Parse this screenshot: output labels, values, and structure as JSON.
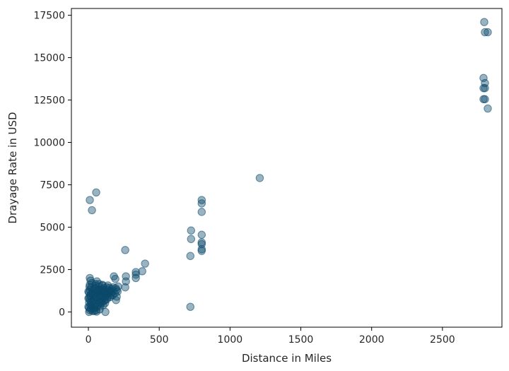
{
  "chart_data": {
    "type": "scatter",
    "title": "",
    "xlabel": "Distance in Miles",
    "ylabel": "Drayage Rate in USD",
    "xlim": [
      -120,
      2920
    ],
    "ylim": [
      -900,
      17900
    ],
    "xticks": [
      0,
      500,
      1000,
      1500,
      2000,
      2500
    ],
    "yticks": [
      0,
      2500,
      5000,
      7500,
      10000,
      12500,
      15000,
      17500
    ],
    "grid": false,
    "legend": "none",
    "point_color": "#0b4a6b",
    "point_alpha": 0.42,
    "series": [
      {
        "points": [
          [
            10,
            6600
          ],
          [
            25,
            6000
          ],
          [
            55,
            7050
          ],
          [
            260,
            3650
          ],
          [
            400,
            2850
          ],
          [
            380,
            2400
          ],
          [
            335,
            2350
          ],
          [
            335,
            2200
          ],
          [
            335,
            2000
          ],
          [
            265,
            2100
          ],
          [
            265,
            1800
          ],
          [
            260,
            1450
          ],
          [
            180,
            2100
          ],
          [
            190,
            1950
          ],
          [
            200,
            1300
          ],
          [
            200,
            900
          ],
          [
            195,
            700
          ],
          [
            120,
            0
          ],
          [
            10,
            2000
          ],
          [
            720,
            300
          ],
          [
            720,
            3300
          ],
          [
            725,
            4300
          ],
          [
            725,
            4800
          ],
          [
            800,
            3600
          ],
          [
            800,
            3700
          ],
          [
            800,
            4000
          ],
          [
            800,
            4100
          ],
          [
            800,
            4550
          ],
          [
            800,
            5900
          ],
          [
            800,
            6400
          ],
          [
            800,
            6600
          ],
          [
            1210,
            7900
          ],
          [
            2795,
            17100
          ],
          [
            2800,
            16500
          ],
          [
            2820,
            16500
          ],
          [
            2790,
            13800
          ],
          [
            2800,
            13500
          ],
          [
            2790,
            13200
          ],
          [
            2800,
            13200
          ],
          [
            2790,
            12550
          ],
          [
            2800,
            12550
          ],
          [
            2820,
            12000
          ],
          [
            5,
            0
          ],
          [
            10,
            100
          ],
          [
            5,
            250
          ],
          [
            15,
            400
          ],
          [
            5,
            550
          ],
          [
            10,
            700
          ],
          [
            5,
            850
          ],
          [
            15,
            1000
          ],
          [
            5,
            1150
          ],
          [
            10,
            1300
          ],
          [
            20,
            1450
          ],
          [
            10,
            1600
          ],
          [
            30,
            50
          ],
          [
            35,
            200
          ],
          [
            25,
            350
          ],
          [
            40,
            500
          ],
          [
            30,
            650
          ],
          [
            45,
            800
          ],
          [
            35,
            950
          ],
          [
            40,
            1100
          ],
          [
            30,
            1250
          ],
          [
            45,
            1400
          ],
          [
            50,
            1550
          ],
          [
            55,
            100
          ],
          [
            60,
            300
          ],
          [
            55,
            500
          ],
          [
            65,
            700
          ],
          [
            60,
            900
          ],
          [
            70,
            1100
          ],
          [
            65,
            1300
          ],
          [
            75,
            1500
          ],
          [
            80,
            150
          ],
          [
            85,
            350
          ],
          [
            80,
            550
          ],
          [
            90,
            750
          ],
          [
            85,
            950
          ],
          [
            95,
            1150
          ],
          [
            90,
            1350
          ],
          [
            100,
            1550
          ],
          [
            105,
            400
          ],
          [
            110,
            650
          ],
          [
            105,
            900
          ],
          [
            115,
            1150
          ],
          [
            110,
            1400
          ],
          [
            120,
            700
          ],
          [
            125,
            950
          ],
          [
            120,
            1200
          ],
          [
            130,
            1450
          ],
          [
            135,
            1050
          ],
          [
            140,
            1300
          ],
          [
            150,
            1100
          ],
          [
            155,
            1250
          ],
          [
            160,
            1000
          ],
          [
            170,
            1200
          ],
          [
            175,
            1450
          ],
          [
            25,
            1700
          ],
          [
            50,
            1650
          ],
          [
            75,
            1650
          ],
          [
            100,
            1600
          ],
          [
            15,
            1850
          ],
          [
            60,
            1800
          ],
          [
            0,
            300
          ],
          [
            0,
            800
          ],
          [
            0,
            1200
          ],
          [
            20,
            550
          ],
          [
            45,
            250
          ],
          [
            70,
            420
          ],
          [
            95,
            620
          ],
          [
            115,
            850
          ],
          [
            140,
            900
          ],
          [
            165,
            1350
          ],
          [
            12,
            950
          ],
          [
            38,
            720
          ],
          [
            62,
            1180
          ],
          [
            88,
            1020
          ],
          [
            102,
            1320
          ],
          [
            128,
            1100
          ],
          [
            145,
            1180
          ],
          [
            155,
            880
          ],
          [
            8,
            1480
          ],
          [
            48,
            1360
          ],
          [
            78,
            900
          ],
          [
            92,
            520
          ],
          [
            58,
            20
          ],
          [
            18,
            180
          ],
          [
            42,
            60
          ],
          [
            68,
            1240
          ],
          [
            108,
            1100
          ],
          [
            132,
            760
          ],
          [
            150,
            1420
          ],
          [
            172,
            980
          ],
          [
            22,
            1080
          ],
          [
            52,
            880
          ],
          [
            82,
            1280
          ],
          [
            118,
            520
          ],
          [
            138,
            1560
          ],
          [
            186,
            1100
          ],
          [
            192,
            1400
          ],
          [
            206,
            1200
          ],
          [
            210,
            1500
          ]
        ]
      }
    ]
  }
}
